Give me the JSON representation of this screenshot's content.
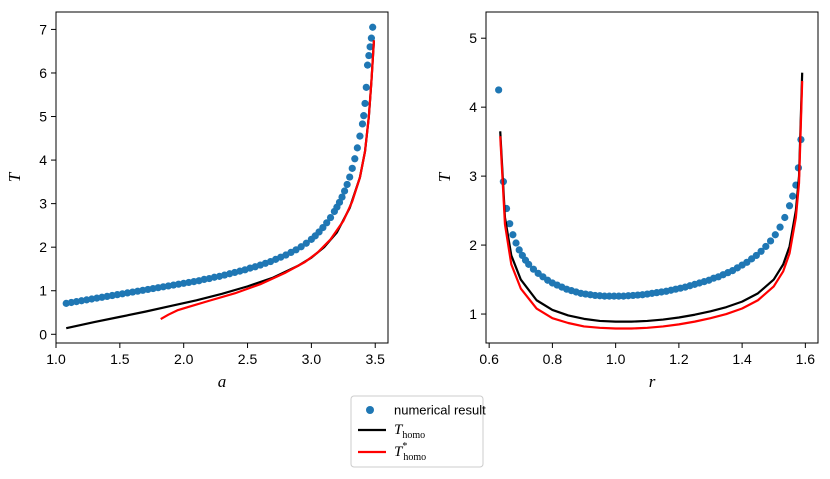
{
  "chart_data": [
    {
      "type": "line",
      "id": "left",
      "xlabel": "a",
      "ylabel": "T",
      "xlim": [
        1.0,
        3.6
      ],
      "ylim": [
        -0.2,
        7.4
      ],
      "xticks": [
        1.0,
        1.5,
        2.0,
        2.5,
        3.0,
        3.5
      ],
      "xtick_labels": [
        "1.0",
        "1.5",
        "2.0",
        "2.5",
        "3.0",
        "3.5"
      ],
      "yticks": [
        0,
        1,
        2,
        3,
        4,
        5,
        6,
        7
      ],
      "ytick_labels": [
        "0",
        "1",
        "2",
        "3",
        "4",
        "5",
        "6",
        "7"
      ],
      "series": [
        {
          "name": "numerical result",
          "kind": "scatter",
          "color": "#1f77b4",
          "x": [
            1.08,
            1.12,
            1.16,
            1.2,
            1.24,
            1.28,
            1.32,
            1.36,
            1.4,
            1.44,
            1.48,
            1.52,
            1.56,
            1.6,
            1.64,
            1.68,
            1.72,
            1.76,
            1.8,
            1.84,
            1.88,
            1.92,
            1.96,
            2.0,
            2.04,
            2.08,
            2.12,
            2.16,
            2.2,
            2.24,
            2.28,
            2.32,
            2.36,
            2.4,
            2.44,
            2.48,
            2.52,
            2.56,
            2.6,
            2.64,
            2.68,
            2.72,
            2.76,
            2.8,
            2.84,
            2.88,
            2.92,
            2.96,
            3.0,
            3.03,
            3.06,
            3.09,
            3.12,
            3.15,
            3.18,
            3.2,
            3.22,
            3.24,
            3.26,
            3.28,
            3.3,
            3.32,
            3.34,
            3.36,
            3.38,
            3.4,
            3.41,
            3.42,
            3.43,
            3.44,
            3.45,
            3.46,
            3.47,
            3.48
          ],
          "y": [
            0.71,
            0.73,
            0.75,
            0.77,
            0.79,
            0.81,
            0.83,
            0.85,
            0.87,
            0.89,
            0.91,
            0.93,
            0.95,
            0.97,
            0.99,
            1.01,
            1.03,
            1.05,
            1.07,
            1.09,
            1.11,
            1.13,
            1.15,
            1.17,
            1.19,
            1.21,
            1.23,
            1.26,
            1.28,
            1.31,
            1.33,
            1.36,
            1.39,
            1.42,
            1.45,
            1.48,
            1.52,
            1.55,
            1.59,
            1.63,
            1.67,
            1.72,
            1.77,
            1.82,
            1.88,
            1.94,
            2.01,
            2.09,
            2.18,
            2.26,
            2.35,
            2.45,
            2.56,
            2.68,
            2.82,
            2.92,
            3.03,
            3.15,
            3.29,
            3.44,
            3.61,
            3.81,
            4.03,
            4.28,
            4.55,
            4.83,
            5.02,
            5.3,
            5.67,
            6.18,
            6.4,
            6.6,
            6.8,
            7.05
          ]
        },
        {
          "name": "T_homo",
          "kind": "line",
          "color": "#000000",
          "x": [
            1.08,
            1.3,
            1.5,
            1.7,
            1.9,
            2.1,
            2.3,
            2.5,
            2.7,
            2.9,
            3.0,
            3.1,
            3.2,
            3.3,
            3.38,
            3.42,
            3.45,
            3.47,
            3.49
          ],
          "y": [
            0.14,
            0.28,
            0.4,
            0.52,
            0.65,
            0.78,
            0.93,
            1.1,
            1.3,
            1.58,
            1.76,
            2.0,
            2.34,
            2.9,
            3.6,
            4.2,
            5.0,
            5.8,
            6.75
          ]
        },
        {
          "name": "T*_homo",
          "kind": "line",
          "color": "#ff0000",
          "x": [
            1.82,
            1.88,
            1.95,
            2.05,
            2.2,
            2.4,
            2.6,
            2.8,
            2.95,
            3.05,
            3.15,
            3.25,
            3.32,
            3.38,
            3.42,
            3.45,
            3.47,
            3.49
          ],
          "y": [
            0.35,
            0.45,
            0.55,
            0.64,
            0.77,
            0.94,
            1.15,
            1.42,
            1.66,
            1.88,
            2.18,
            2.6,
            3.05,
            3.6,
            4.2,
            5.0,
            5.8,
            6.75
          ]
        }
      ]
    },
    {
      "type": "line",
      "id": "right",
      "xlabel": "r",
      "ylabel": "T",
      "xlim": [
        0.59,
        1.64
      ],
      "ylim": [
        0.58,
        5.38
      ],
      "xticks": [
        0.6,
        0.8,
        1.0,
        1.2,
        1.4,
        1.6
      ],
      "xtick_labels": [
        "0.6",
        "0.8",
        "1.0",
        "1.2",
        "1.4",
        "1.6"
      ],
      "yticks": [
        1,
        2,
        3,
        4,
        5
      ],
      "ytick_labels": [
        "1",
        "2",
        "3",
        "4",
        "5"
      ],
      "series": [
        {
          "name": "numerical result",
          "kind": "scatter",
          "color": "#1f77b4",
          "x": [
            0.63,
            0.645,
            0.655,
            0.665,
            0.675,
            0.685,
            0.695,
            0.705,
            0.715,
            0.725,
            0.74,
            0.755,
            0.77,
            0.785,
            0.8,
            0.815,
            0.83,
            0.845,
            0.86,
            0.875,
            0.89,
            0.905,
            0.92,
            0.935,
            0.95,
            0.965,
            0.98,
            0.995,
            1.01,
            1.025,
            1.04,
            1.055,
            1.07,
            1.085,
            1.1,
            1.115,
            1.13,
            1.145,
            1.16,
            1.175,
            1.19,
            1.205,
            1.22,
            1.235,
            1.25,
            1.265,
            1.28,
            1.295,
            1.31,
            1.325,
            1.34,
            1.355,
            1.37,
            1.385,
            1.4,
            1.415,
            1.43,
            1.445,
            1.46,
            1.475,
            1.49,
            1.505,
            1.52,
            1.535,
            1.55,
            1.56,
            1.57,
            1.578,
            1.586
          ],
          "y": [
            4.25,
            2.92,
            2.53,
            2.31,
            2.15,
            2.03,
            1.93,
            1.85,
            1.78,
            1.72,
            1.65,
            1.59,
            1.54,
            1.49,
            1.45,
            1.42,
            1.39,
            1.36,
            1.34,
            1.32,
            1.3,
            1.29,
            1.28,
            1.27,
            1.265,
            1.26,
            1.26,
            1.26,
            1.26,
            1.26,
            1.265,
            1.27,
            1.275,
            1.28,
            1.29,
            1.3,
            1.31,
            1.32,
            1.33,
            1.345,
            1.36,
            1.375,
            1.39,
            1.41,
            1.43,
            1.45,
            1.47,
            1.49,
            1.52,
            1.54,
            1.57,
            1.6,
            1.63,
            1.67,
            1.71,
            1.75,
            1.8,
            1.85,
            1.91,
            1.98,
            2.06,
            2.15,
            2.26,
            2.4,
            2.57,
            2.71,
            2.87,
            3.12,
            3.53
          ]
        },
        {
          "name": "T_homo",
          "kind": "line",
          "color": "#000000",
          "x": [
            0.635,
            0.65,
            0.67,
            0.7,
            0.75,
            0.8,
            0.85,
            0.9,
            0.95,
            1.0,
            1.05,
            1.1,
            1.15,
            1.2,
            1.25,
            1.3,
            1.35,
            1.4,
            1.45,
            1.5,
            1.53,
            1.55,
            1.57,
            1.58,
            1.59
          ],
          "y": [
            3.65,
            2.4,
            1.85,
            1.5,
            1.2,
            1.06,
            0.98,
            0.93,
            0.9,
            0.89,
            0.89,
            0.9,
            0.92,
            0.95,
            0.99,
            1.04,
            1.1,
            1.18,
            1.3,
            1.5,
            1.72,
            1.98,
            2.5,
            3.0,
            4.5
          ]
        },
        {
          "name": "T*_homo",
          "kind": "line",
          "color": "#ff0000",
          "x": [
            0.635,
            0.65,
            0.67,
            0.7,
            0.75,
            0.8,
            0.85,
            0.9,
            0.95,
            1.0,
            1.05,
            1.1,
            1.15,
            1.2,
            1.25,
            1.3,
            1.35,
            1.4,
            1.45,
            1.5,
            1.53,
            1.55,
            1.57,
            1.58,
            1.59
          ],
          "y": [
            3.58,
            2.3,
            1.72,
            1.37,
            1.08,
            0.94,
            0.87,
            0.82,
            0.8,
            0.79,
            0.79,
            0.8,
            0.82,
            0.85,
            0.89,
            0.94,
            1.0,
            1.08,
            1.2,
            1.4,
            1.62,
            1.88,
            2.4,
            2.9,
            4.38
          ]
        }
      ]
    }
  ],
  "legend": {
    "placement": "bottom-center",
    "items": [
      {
        "kind": "marker",
        "color": "#1f77b4",
        "label": "numerical result"
      },
      {
        "kind": "line",
        "color": "#000000",
        "label": "T",
        "subscript": "homo",
        "superscript": ""
      },
      {
        "kind": "line",
        "color": "#ff0000",
        "label": "T",
        "subscript": "homo",
        "superscript": "*"
      }
    ]
  }
}
